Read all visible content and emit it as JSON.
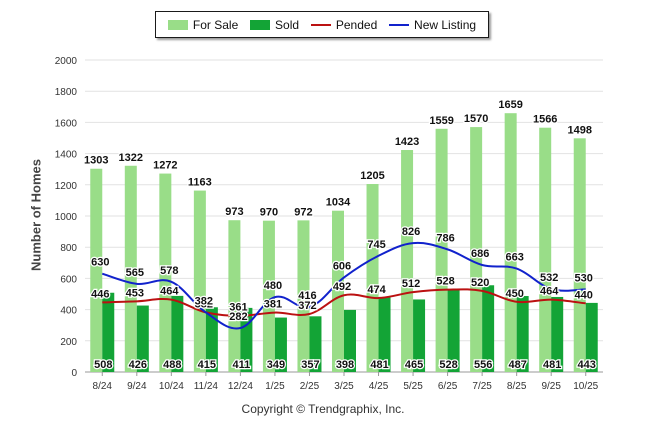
{
  "chart_data": {
    "type": "bar",
    "categories": [
      "8/24",
      "9/24",
      "10/24",
      "11/24",
      "12/24",
      "1/25",
      "2/25",
      "3/25",
      "4/25",
      "5/25",
      "6/25",
      "7/25",
      "8/25",
      "9/25",
      "10/25"
    ],
    "series": [
      {
        "name": "For Sale",
        "kind": "bar",
        "color": "#99dd88",
        "values": [
          1303,
          1322,
          1272,
          1163,
          973,
          970,
          972,
          1034,
          1205,
          1423,
          1559,
          1570,
          1659,
          1566,
          1498
        ]
      },
      {
        "name": "Sold",
        "kind": "bar",
        "color": "#13a436",
        "values": [
          508,
          426,
          488,
          415,
          411,
          349,
          357,
          398,
          481,
          465,
          528,
          556,
          487,
          481,
          443
        ]
      },
      {
        "name": "Pended",
        "kind": "line",
        "color": "#bb1111",
        "values": [
          446,
          453,
          464,
          382,
          361,
          381,
          372,
          492,
          474,
          512,
          528,
          520,
          450,
          464,
          440
        ]
      },
      {
        "name": "New Listing",
        "kind": "line",
        "color": "#1122cc",
        "values": [
          630,
          565,
          578,
          382,
          282,
          480,
          416,
          606,
          745,
          826,
          786,
          686,
          663,
          532,
          530
        ]
      }
    ],
    "ylabel": "Number of Homes",
    "xlabel": "",
    "ylim": [
      0,
      2000
    ],
    "yticks": [
      0,
      200,
      400,
      600,
      800,
      1000,
      1200,
      1400,
      1600,
      1800,
      2000
    ],
    "legend_position": "top-center",
    "grid": true
  },
  "footer": {
    "copyright": "Copyright © Trendgraphix, Inc."
  }
}
